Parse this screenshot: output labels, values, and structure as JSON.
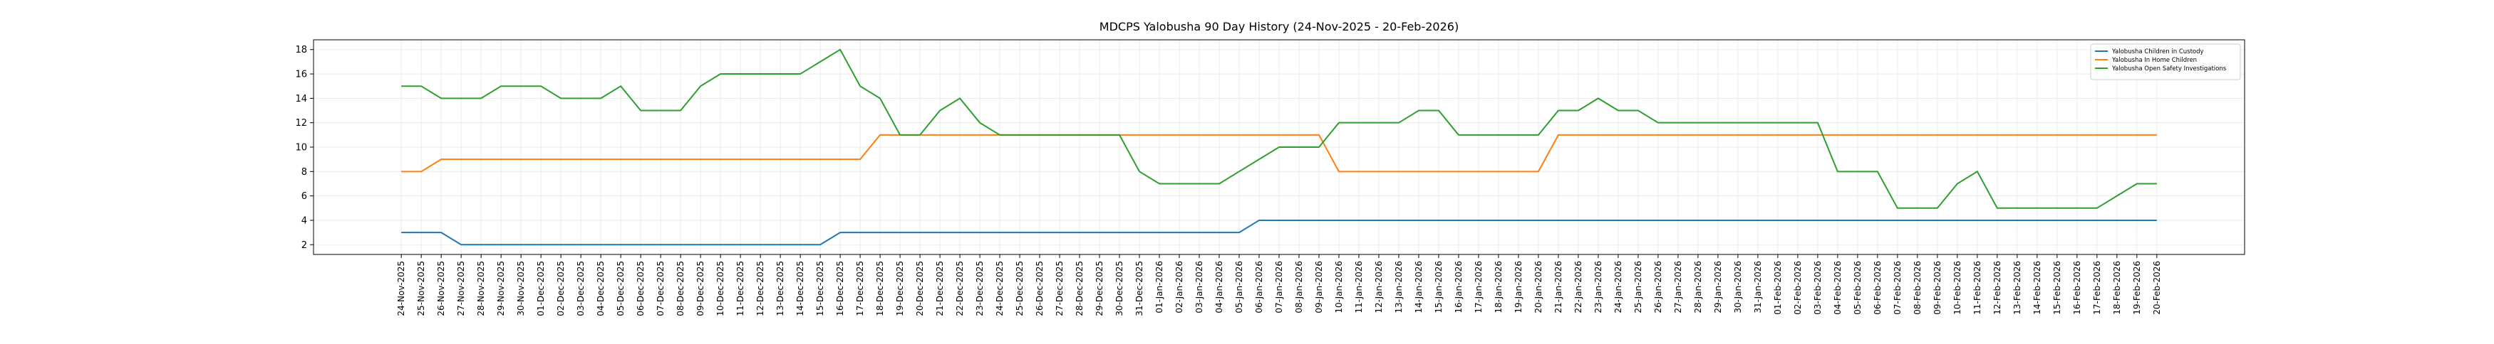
{
  "chart_data": {
    "type": "line",
    "title": "MDCPS Yalobusha 90 Day History (24-Nov-2025 - 20-Feb-2026)",
    "categories": [
      "24-Nov-2025",
      "25-Nov-2025",
      "26-Nov-2025",
      "27-Nov-2025",
      "28-Nov-2025",
      "29-Nov-2025",
      "30-Nov-2025",
      "01-Dec-2025",
      "02-Dec-2025",
      "03-Dec-2025",
      "04-Dec-2025",
      "05-Dec-2025",
      "06-Dec-2025",
      "07-Dec-2025",
      "08-Dec-2025",
      "09-Dec-2025",
      "10-Dec-2025",
      "11-Dec-2025",
      "12-Dec-2025",
      "13-Dec-2025",
      "14-Dec-2025",
      "15-Dec-2025",
      "16-Dec-2025",
      "17-Dec-2025",
      "18-Dec-2025",
      "19-Dec-2025",
      "20-Dec-2025",
      "21-Dec-2025",
      "22-Dec-2025",
      "23-Dec-2025",
      "24-Dec-2025",
      "25-Dec-2025",
      "26-Dec-2025",
      "27-Dec-2025",
      "28-Dec-2025",
      "29-Dec-2025",
      "30-Dec-2025",
      "31-Dec-2025",
      "01-Jan-2026",
      "02-Jan-2026",
      "03-Jan-2026",
      "04-Jan-2026",
      "05-Jan-2026",
      "06-Jan-2026",
      "07-Jan-2026",
      "08-Jan-2026",
      "09-Jan-2026",
      "10-Jan-2026",
      "11-Jan-2026",
      "12-Jan-2026",
      "13-Jan-2026",
      "14-Jan-2026",
      "15-Jan-2026",
      "16-Jan-2026",
      "17-Jan-2026",
      "18-Jan-2026",
      "19-Jan-2026",
      "20-Jan-2026",
      "21-Jan-2026",
      "22-Jan-2026",
      "23-Jan-2026",
      "24-Jan-2026",
      "25-Jan-2026",
      "26-Jan-2026",
      "27-Jan-2026",
      "28-Jan-2026",
      "29-Jan-2026",
      "30-Jan-2026",
      "31-Jan-2026",
      "01-Feb-2026",
      "02-Feb-2026",
      "03-Feb-2026",
      "04-Feb-2026",
      "05-Feb-2026",
      "06-Feb-2026",
      "07-Feb-2026",
      "08-Feb-2026",
      "09-Feb-2026",
      "10-Feb-2026",
      "11-Feb-2026",
      "12-Feb-2026",
      "13-Feb-2026",
      "14-Feb-2026",
      "15-Feb-2026",
      "16-Feb-2026",
      "17-Feb-2026",
      "18-Feb-2026",
      "19-Feb-2026",
      "20-Feb-2026"
    ],
    "series": [
      {
        "name": "Yalobusha Children in Custody",
        "color": "#1f77b4",
        "values": [
          3,
          3,
          3,
          2,
          2,
          2,
          2,
          2,
          2,
          2,
          2,
          2,
          2,
          2,
          2,
          2,
          2,
          2,
          2,
          2,
          2,
          2,
          3,
          3,
          3,
          3,
          3,
          3,
          3,
          3,
          3,
          3,
          3,
          3,
          3,
          3,
          3,
          3,
          3,
          3,
          3,
          3,
          3,
          4,
          4,
          4,
          4,
          4,
          4,
          4,
          4,
          4,
          4,
          4,
          4,
          4,
          4,
          4,
          4,
          4,
          4,
          4,
          4,
          4,
          4,
          4,
          4,
          4,
          4,
          4,
          4,
          4,
          4,
          4,
          4,
          4,
          4,
          4,
          4,
          4,
          4,
          4,
          4,
          4,
          4,
          4,
          4,
          4,
          4
        ]
      },
      {
        "name": "Yalobusha In Home Children",
        "color": "#ff7f0e",
        "values": [
          8,
          8,
          9,
          9,
          9,
          9,
          9,
          9,
          9,
          9,
          9,
          9,
          9,
          9,
          9,
          9,
          9,
          9,
          9,
          9,
          9,
          9,
          9,
          9,
          11,
          11,
          11,
          11,
          11,
          11,
          11,
          11,
          11,
          11,
          11,
          11,
          11,
          11,
          11,
          11,
          11,
          11,
          11,
          11,
          11,
          11,
          11,
          8,
          8,
          8,
          8,
          8,
          8,
          8,
          8,
          8,
          8,
          8,
          11,
          11,
          11,
          11,
          11,
          11,
          11,
          11,
          11,
          11,
          11,
          11,
          11,
          11,
          11,
          11,
          11,
          11,
          11,
          11,
          11,
          11,
          11,
          11,
          11,
          11,
          11,
          11,
          11,
          11,
          11
        ]
      },
      {
        "name": "Yalobusha Open Safety Investigations",
        "color": "#2ca02c",
        "values": [
          15,
          15,
          14,
          14,
          14,
          15,
          15,
          15,
          14,
          14,
          14,
          15,
          13,
          13,
          13,
          15,
          16,
          16,
          16,
          16,
          16,
          17,
          18,
          15,
          14,
          11,
          11,
          13,
          14,
          12,
          11,
          11,
          11,
          11,
          11,
          11,
          11,
          8,
          7,
          7,
          7,
          7,
          8,
          9,
          10,
          10,
          10,
          12,
          12,
          12,
          12,
          13,
          13,
          11,
          11,
          11,
          11,
          11,
          13,
          13,
          14,
          13,
          13,
          12,
          12,
          12,
          12,
          12,
          12,
          12,
          12,
          12,
          8,
          8,
          8,
          5,
          5,
          5,
          7,
          8,
          5,
          5,
          5,
          5,
          5,
          5,
          6,
          7,
          7
        ]
      }
    ],
    "ylim": [
      1.2,
      18.8
    ],
    "yticks": [
      2,
      4,
      6,
      8,
      10,
      12,
      14,
      16,
      18
    ],
    "grid": true,
    "legend": "upper right"
  }
}
